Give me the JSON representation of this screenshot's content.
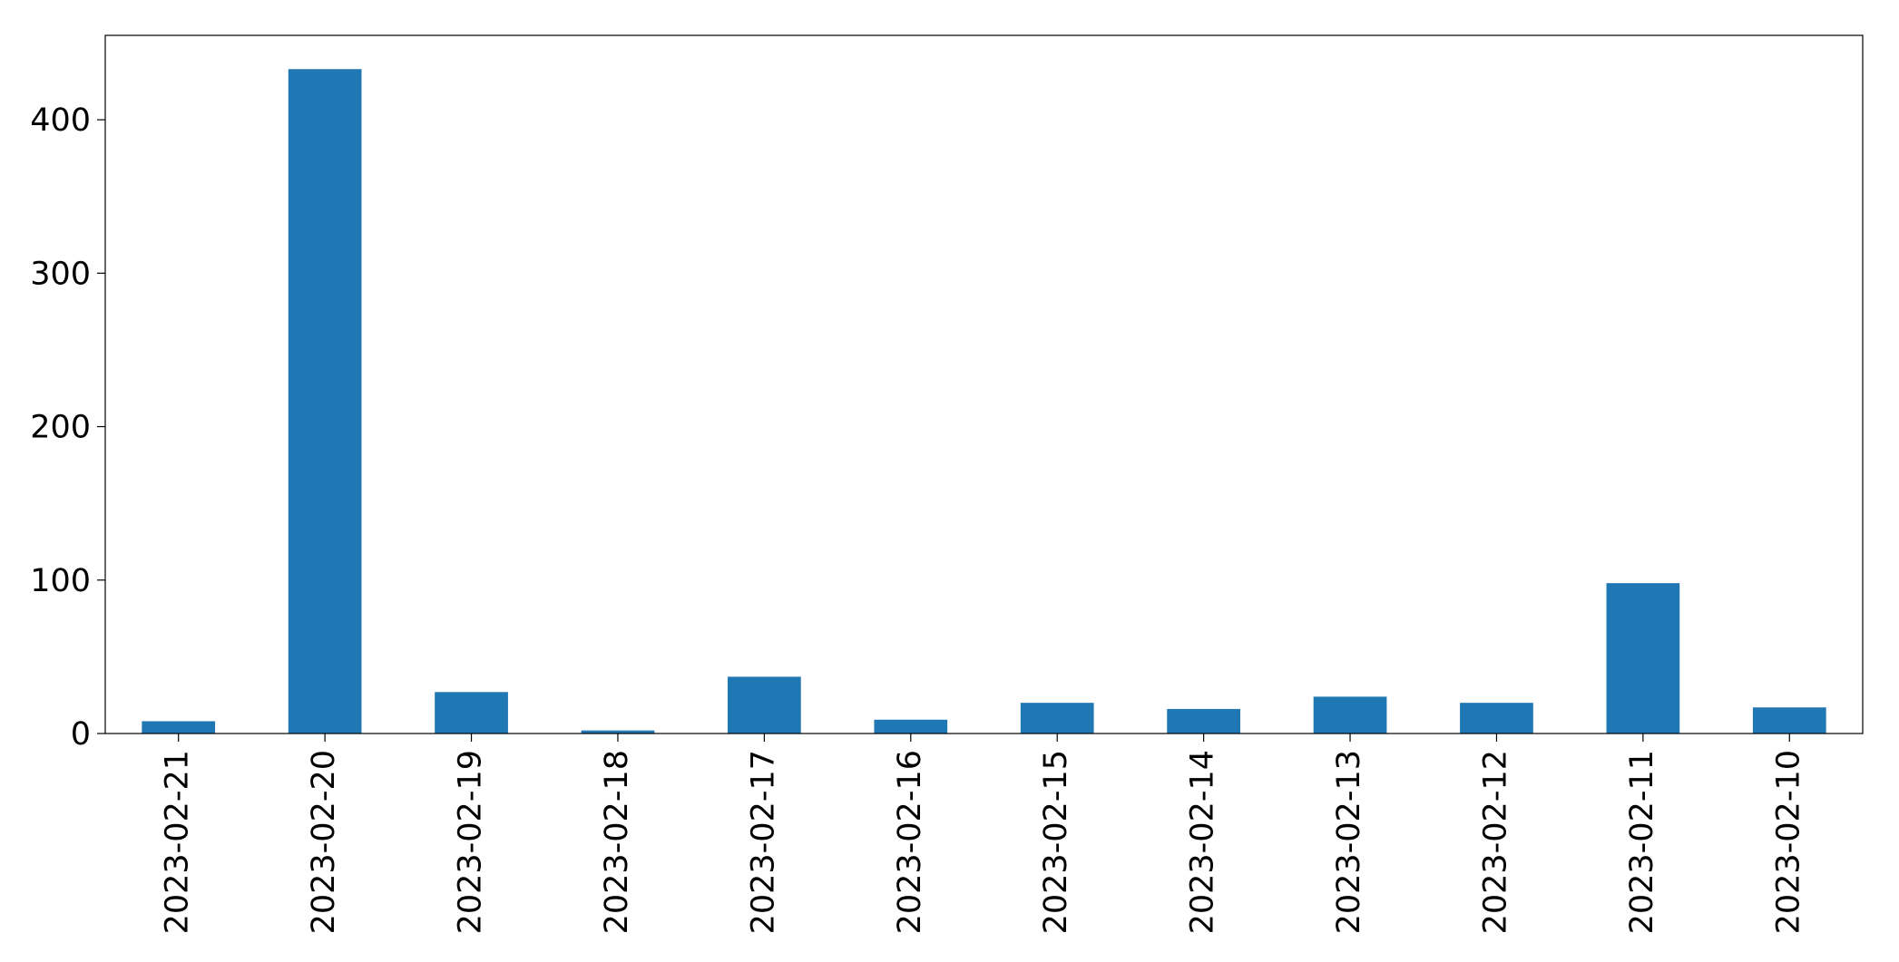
{
  "chart_data": {
    "type": "bar",
    "categories": [
      "2023-02-21",
      "2023-02-20",
      "2023-02-19",
      "2023-02-18",
      "2023-02-17",
      "2023-02-16",
      "2023-02-15",
      "2023-02-14",
      "2023-02-13",
      "2023-02-12",
      "2023-02-11",
      "2023-02-10"
    ],
    "values": [
      8,
      433,
      27,
      2,
      37,
      9,
      20,
      16,
      24,
      20,
      98,
      17
    ],
    "color": "#1f77b4",
    "ylim": [
      0,
      455
    ],
    "yticks": [
      0,
      100,
      200,
      300,
      400
    ],
    "grid": false
  }
}
